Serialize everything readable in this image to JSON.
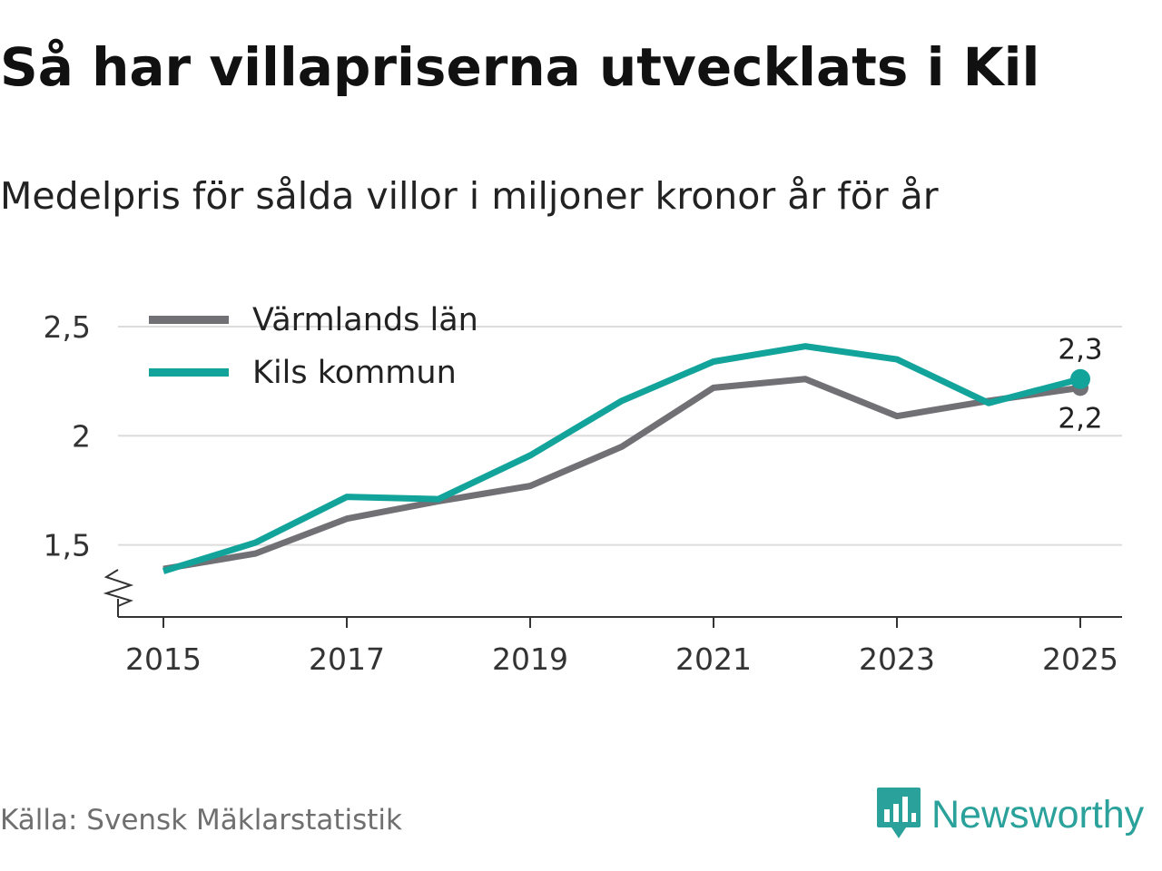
{
  "title": "Så har villapriserna utvecklats i Kil",
  "subtitle": "Medelpris för sålda villor i miljoner kronor år för år",
  "source": "Källa: Svensk Mäklarstatistik",
  "brand": {
    "name": "Newsworthy",
    "icon": "newsworthy-logo-icon",
    "color": "#2aa19a"
  },
  "chart_data": {
    "type": "line",
    "title": "Så har villapriserna utvecklats i Kil",
    "subtitle": "Medelpris för sålda villor i miljoner kronor år för år",
    "xlabel": "",
    "ylabel": "",
    "x": [
      2015,
      2016,
      2017,
      2018,
      2019,
      2020,
      2021,
      2022,
      2023,
      2024,
      2025
    ],
    "x_ticks": [
      2015,
      2017,
      2019,
      2021,
      2023,
      2025
    ],
    "x_tick_labels": [
      "2015",
      "2017",
      "2019",
      "2021",
      "2023",
      "2025"
    ],
    "y_ticks": [
      1.5,
      2,
      2.5
    ],
    "y_tick_labels": [
      "1,5",
      "2",
      "2,5"
    ],
    "ylim": [
      1.17,
      2.5
    ],
    "grid": true,
    "axis_break": true,
    "legend_position": "top-left",
    "series": [
      {
        "name": "Värmlands län",
        "color": "#707075",
        "values": [
          1.39,
          1.46,
          1.62,
          1.7,
          1.77,
          1.95,
          2.22,
          2.26,
          2.09,
          2.16,
          2.22
        ],
        "end_label": "2,2"
      },
      {
        "name": "Kils kommun",
        "color": "#12a39b",
        "values": [
          1.38,
          1.51,
          1.72,
          1.71,
          1.91,
          2.16,
          2.34,
          2.41,
          2.35,
          2.15,
          2.26
        ],
        "end_label": "2,3"
      }
    ]
  }
}
